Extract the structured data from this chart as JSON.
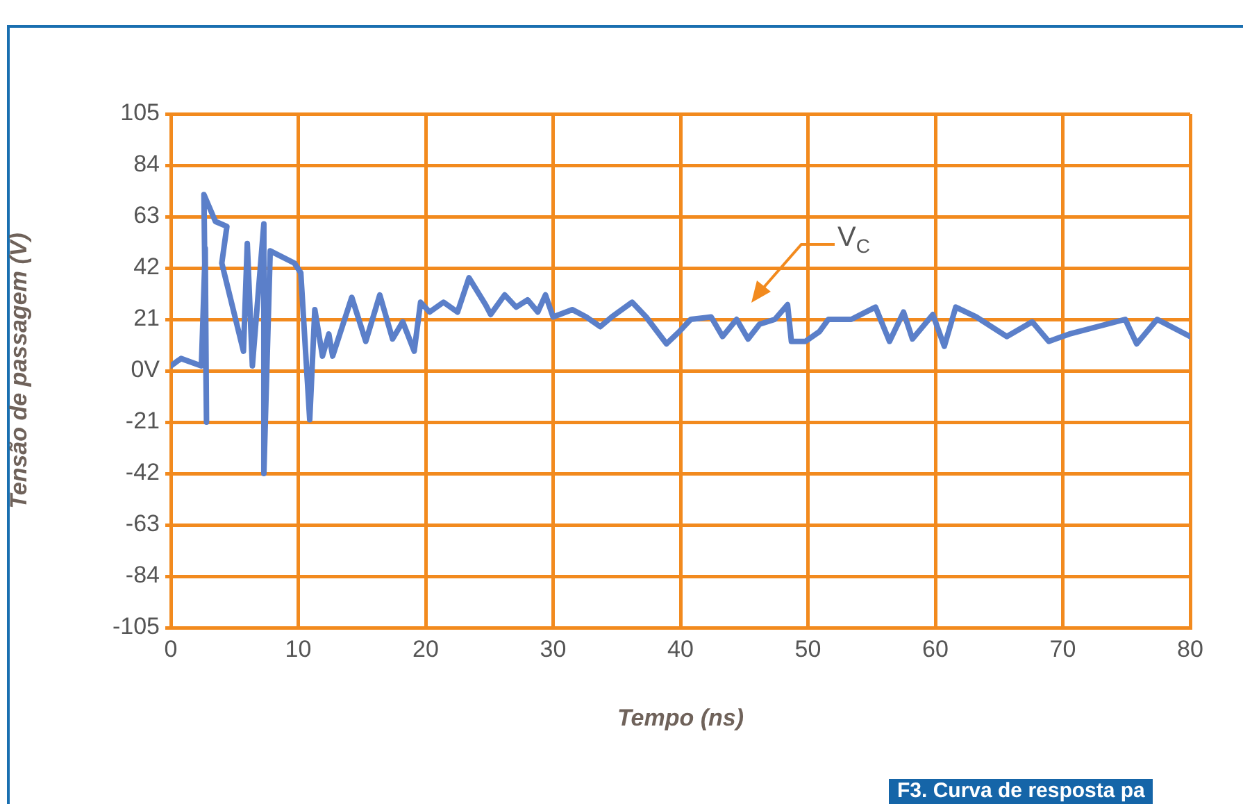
{
  "chart_data": {
    "type": "line",
    "xlabel": "Tempo (ns)",
    "ylabel": "Tensão de passagem (V)",
    "xlim": [
      0,
      80
    ],
    "xticks": [
      0,
      10,
      20,
      30,
      40,
      50,
      60,
      70,
      80
    ],
    "ylim": [
      -105,
      105
    ],
    "yticks": [
      -105,
      -84,
      -63,
      -42,
      -21,
      {
        "value": 0,
        "label": "0V"
      },
      21,
      42,
      63,
      84,
      105
    ],
    "grid": true,
    "marker": "none",
    "line_style": "solid",
    "series": [
      {
        "color": "#5b7fc9",
        "x": [
          0,
          0.8,
          2.4,
          2.7,
          2.8,
          2.6,
          3.5,
          4.4,
          4.0,
          5.7,
          6.0,
          6.4,
          7.3,
          7.3,
          7.8,
          9.7,
          10.2,
          10.9,
          11.3,
          11.9,
          12.4,
          12.7,
          14.2,
          15.3,
          16.4,
          17.4,
          18.2,
          19.1,
          19.6,
          20.3,
          21.4,
          22.5,
          23.4,
          24.7,
          25.1,
          26.2,
          27.1,
          28,
          28.8,
          29.4,
          30,
          31.5,
          32.6,
          33.7,
          34.6,
          36.2,
          37.3,
          38.9,
          39.9,
          40.8,
          42.4,
          43.3,
          44.4,
          45.3,
          46.2,
          47.4,
          48.4,
          48.7,
          49.8,
          50.9,
          51.6,
          53.4,
          55.3,
          56.4,
          57.5,
          58.2,
          59.8,
          60.7,
          61.6,
          63.2,
          65.6,
          67.6,
          68.9,
          70.5,
          74.9,
          75.8,
          77.4,
          80
        ],
        "values": [
          2,
          5,
          2,
          50,
          -21,
          72,
          61,
          59,
          44,
          8,
          52,
          2,
          60,
          -42,
          49,
          44,
          40,
          -20,
          25,
          6,
          15,
          6,
          30,
          12,
          31,
          13,
          20,
          8,
          28,
          24,
          28,
          24,
          38,
          27,
          23,
          31,
          26,
          29,
          24,
          31,
          22,
          25,
          22,
          18,
          22,
          28,
          22,
          11,
          16,
          21,
          22,
          14,
          21,
          13,
          19,
          21,
          27,
          12,
          12,
          16,
          21,
          21,
          26,
          12,
          24,
          13,
          23,
          10,
          26,
          22,
          14,
          20,
          12,
          15,
          21,
          11,
          21,
          14
        ]
      }
    ],
    "annotations": [
      "V$_{C}$",
      "F3. Curva de resposta pa"
    ]
  }
}
